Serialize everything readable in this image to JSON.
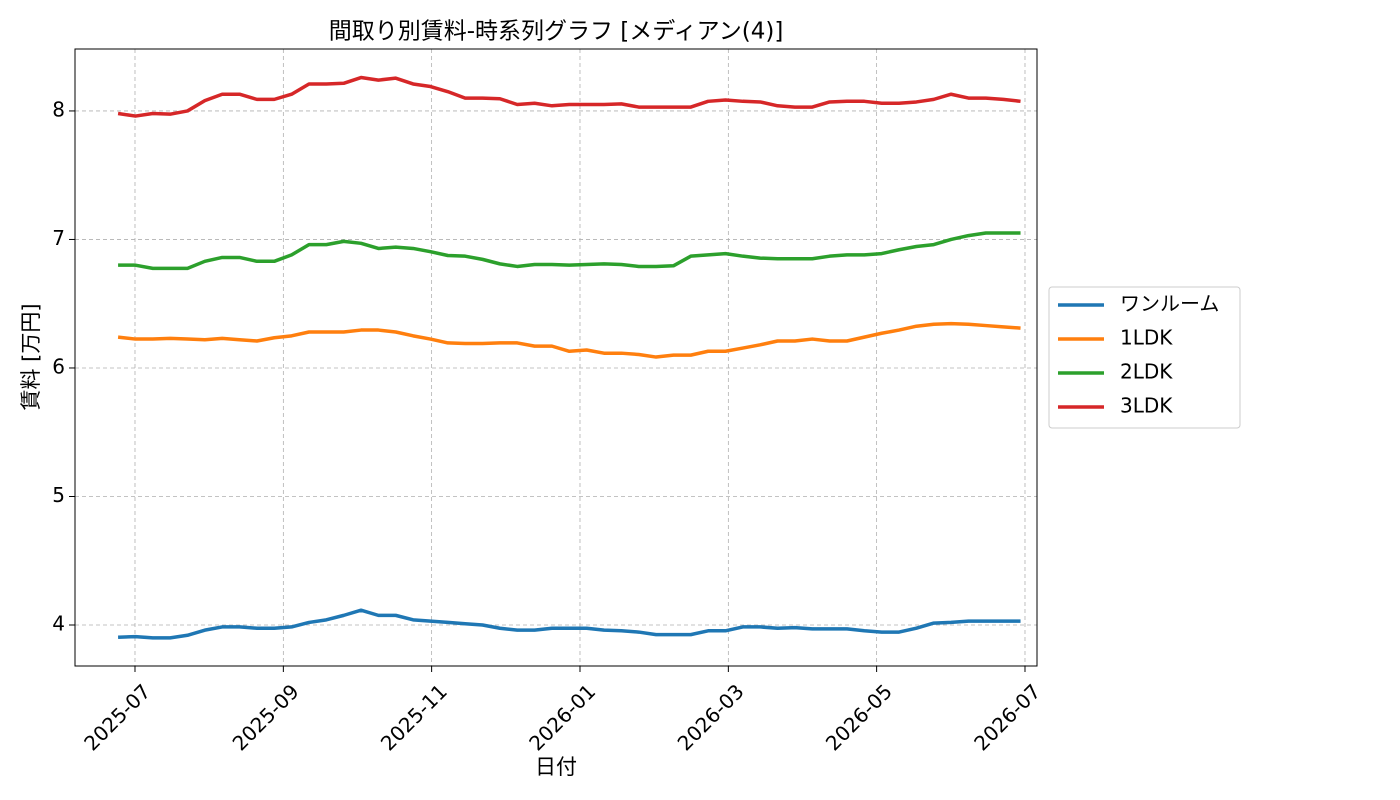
{
  "chart_data": {
    "type": "line",
    "title": "間取り別賃料-時系列グラフ [メディアン(4)]",
    "x_label": "日付",
    "y_label": "賃料 [万円]",
    "x": [
      2025.481,
      2025.5005,
      2025.52,
      2025.5395,
      2025.559,
      2025.5785,
      2025.598,
      2025.6175,
      2025.637,
      2025.6565,
      2025.676,
      2025.6955,
      2025.715,
      2025.7345,
      2025.754,
      2025.7735,
      2025.793,
      2025.8125,
      2025.832,
      2025.8515,
      2025.871,
      2025.8905,
      2025.91,
      2025.9295,
      2025.949,
      2025.9685,
      2025.988,
      2026.0075,
      2026.027,
      2026.0465,
      2026.066,
      2026.0855,
      2026.105,
      2026.1245,
      2026.144,
      2026.1635,
      2026.183,
      2026.2025,
      2026.222,
      2026.2415,
      2026.261,
      2026.2805,
      2026.3,
      2026.3195,
      2026.339,
      2026.3585,
      2026.378,
      2026.3975,
      2026.417,
      2026.4365,
      2026.456,
      2026.4755,
      2026.495
    ],
    "series": [
      {
        "name": "ワンルーム",
        "color": "#1f77b4",
        "values": [
          3.905,
          3.91,
          3.9,
          3.9,
          3.92,
          3.96,
          3.985,
          3.985,
          3.975,
          3.975,
          3.985,
          4.02,
          4.04,
          4.075,
          4.115,
          4.075,
          4.075,
          4.04,
          4.03,
          4.02,
          4.01,
          4.0,
          3.975,
          3.96,
          3.96,
          3.975,
          3.975,
          3.975,
          3.96,
          3.955,
          3.945,
          3.925,
          3.925,
          3.925,
          3.955,
          3.955,
          3.985,
          3.985,
          3.975,
          3.98,
          3.97,
          3.97,
          3.97,
          3.955,
          3.945,
          3.945,
          3.975,
          4.015,
          4.02,
          4.03,
          4.03,
          4.03,
          4.03
        ]
      },
      {
        "name": "1LDK",
        "color": "#ff7f0e",
        "values": [
          6.24,
          6.225,
          6.225,
          6.23,
          6.225,
          6.22,
          6.23,
          6.22,
          6.21,
          6.235,
          6.25,
          6.28,
          6.28,
          6.28,
          6.295,
          6.295,
          6.28,
          6.25,
          6.225,
          6.195,
          6.19,
          6.19,
          6.195,
          6.195,
          6.17,
          6.17,
          6.13,
          6.14,
          6.115,
          6.115,
          6.105,
          6.085,
          6.1,
          6.1,
          6.13,
          6.13,
          6.155,
          6.18,
          6.21,
          6.21,
          6.225,
          6.21,
          6.21,
          6.24,
          6.27,
          6.295,
          6.325,
          6.34,
          6.345,
          6.34,
          6.33,
          6.32,
          6.31
        ]
      },
      {
        "name": "2LDK",
        "color": "#2ca02c",
        "values": [
          6.8,
          6.8,
          6.775,
          6.775,
          6.775,
          6.83,
          6.86,
          6.86,
          6.83,
          6.83,
          6.88,
          6.96,
          6.96,
          6.985,
          6.97,
          6.93,
          6.94,
          6.93,
          6.905,
          6.875,
          6.87,
          6.845,
          6.81,
          6.79,
          6.805,
          6.805,
          6.8,
          6.805,
          6.81,
          6.805,
          6.79,
          6.79,
          6.795,
          6.87,
          6.88,
          6.89,
          6.87,
          6.855,
          6.85,
          6.85,
          6.85,
          6.87,
          6.88,
          6.88,
          6.89,
          6.92,
          6.945,
          6.96,
          7.0,
          7.03,
          7.05,
          7.05,
          7.05
        ]
      },
      {
        "name": "3LDK",
        "color": "#d62728",
        "values": [
          7.98,
          7.96,
          7.98,
          7.975,
          8.0,
          8.08,
          8.13,
          8.13,
          8.09,
          8.09,
          8.13,
          8.21,
          8.21,
          8.215,
          8.26,
          8.24,
          8.255,
          8.21,
          8.19,
          8.15,
          8.1,
          8.1,
          8.095,
          8.05,
          8.06,
          8.04,
          8.05,
          8.05,
          8.05,
          8.055,
          8.03,
          8.03,
          8.03,
          8.03,
          8.075,
          8.085,
          8.075,
          8.07,
          8.04,
          8.03,
          8.03,
          8.07,
          8.075,
          8.075,
          8.06,
          8.06,
          8.07,
          8.09,
          8.13,
          8.1,
          8.1,
          8.09,
          8.075
        ]
      }
    ],
    "xlim": [
      2025.4326,
      2026.5135
    ],
    "xticks": [
      {
        "value": 2025.5,
        "label": "2025-07"
      },
      {
        "value": 2025.6667,
        "label": "2025-09"
      },
      {
        "value": 2025.8333,
        "label": "2025-11"
      },
      {
        "value": 2026.0,
        "label": "2026-01"
      },
      {
        "value": 2026.1667,
        "label": "2026-03"
      },
      {
        "value": 2026.3333,
        "label": "2026-05"
      },
      {
        "value": 2026.5,
        "label": "2026-07"
      }
    ],
    "ylim": [
      3.681,
      8.482
    ],
    "yticks": [
      4,
      5,
      6,
      7,
      8
    ],
    "grid": true,
    "legend": "right"
  }
}
